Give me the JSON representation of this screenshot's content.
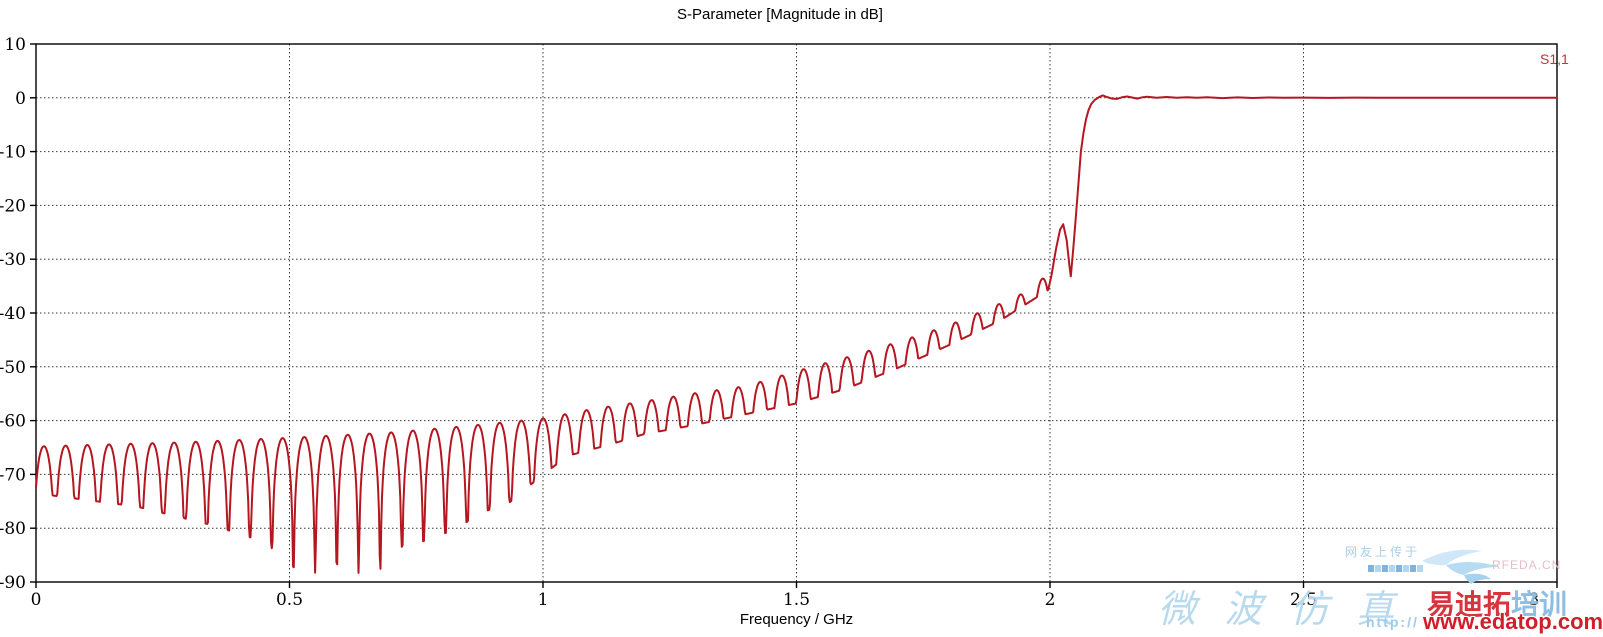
{
  "title": "S-Parameter [Magnitude in dB]",
  "legend": {
    "label": "S1,1",
    "color": "#c5333e"
  },
  "axis": {
    "x_title": "Frequency / GHz"
  },
  "chart_data": {
    "type": "line",
    "title": "S-Parameter [Magnitude in dB]",
    "xlabel": "Frequency / GHz",
    "ylabel": "",
    "xlim": [
      0,
      3
    ],
    "ylim": [
      -90,
      10
    ],
    "xticks": [
      0,
      0.5,
      1,
      1.5,
      2,
      2.5,
      3
    ],
    "xtick_labels": [
      "0",
      "0.5",
      "1",
      "1.5",
      "2",
      "2.5",
      "3"
    ],
    "xtick_label_dx": [
      0,
      0,
      0,
      0,
      0,
      0,
      -23
    ],
    "yticks": [
      10,
      0,
      -10,
      -20,
      -30,
      -40,
      -50,
      -60,
      -70,
      -80,
      -90
    ],
    "grid": "dotted",
    "grid_color": "#3a3a3a",
    "legend_position": "top-right-outside",
    "series": [
      {
        "name": "S1,1",
        "color": "#b51721",
        "model": {
          "description": "Reflection coefficient of a low-pass filter: rippled return loss (-60 to -90 dB notches) over the passband, rising to a sharp transition near 2.05 GHz, then total reflection at 0 dB up to 3 GHz",
          "ripple_period_ghz": 0.0428,
          "notch_phase_ghz": 0.037,
          "ripple_end_ghz": 1.998,
          "sample_step_ghz": 0.0015,
          "envelope_top": [
            [
              0,
              -64.8
            ],
            [
              0.3,
              -64.0
            ],
            [
              0.5,
              -63.2
            ],
            [
              0.7,
              -62.2
            ],
            [
              0.85,
              -61.0
            ],
            [
              1.0,
              -59.6
            ],
            [
              1.1,
              -57.8
            ],
            [
              1.2,
              -56.4
            ],
            [
              1.3,
              -54.9
            ],
            [
              1.4,
              -53.6
            ],
            [
              1.5,
              -50.8
            ],
            [
              1.6,
              -48.2
            ],
            [
              1.7,
              -45.4
            ],
            [
              1.8,
              -42.3
            ],
            [
              1.9,
              -38.3
            ],
            [
              1.95,
              -36.2
            ],
            [
              2.0,
              -32.5
            ]
          ],
          "envelope_bottom": [
            [
              0,
              -73.5
            ],
            [
              0.2,
              -76.0
            ],
            [
              0.35,
              -79.5
            ],
            [
              0.45,
              -82.5
            ],
            [
              0.53,
              -89.0
            ],
            [
              0.6,
              -86.5
            ],
            [
              0.66,
              -89.5
            ],
            [
              0.72,
              -83.5
            ],
            [
              0.78,
              -82.0
            ],
            [
              0.83,
              -80.0
            ],
            [
              0.88,
              -77.0
            ],
            [
              0.93,
              -75.5
            ],
            [
              1.0,
              -70.0
            ],
            [
              1.05,
              -66.5
            ],
            [
              1.13,
              -64.5
            ],
            [
              1.2,
              -62.5
            ],
            [
              1.3,
              -60.8
            ],
            [
              1.4,
              -58.8
            ],
            [
              1.5,
              -56.8
            ],
            [
              1.6,
              -54.0
            ],
            [
              1.7,
              -50.2
            ],
            [
              1.8,
              -46.0
            ],
            [
              1.9,
              -41.5
            ],
            [
              2.0,
              -35.5
            ]
          ],
          "transition_points": [
            [
              2.003,
              -33.0
            ],
            [
              2.012,
              -28.0
            ],
            [
              2.02,
              -24.5
            ],
            [
              2.026,
              -23.5
            ],
            [
              2.033,
              -26.5
            ],
            [
              2.038,
              -31.0
            ],
            [
              2.041,
              -33.2
            ],
            [
              2.046,
              -28.0
            ],
            [
              2.051,
              -22.0
            ],
            [
              2.056,
              -16.0
            ],
            [
              2.061,
              -10.0
            ],
            [
              2.066,
              -6.5
            ],
            [
              2.071,
              -4.0
            ],
            [
              2.076,
              -2.3
            ],
            [
              2.081,
              -1.2
            ],
            [
              2.088,
              -0.4
            ],
            [
              2.096,
              0.1
            ],
            [
              2.104,
              0.45
            ],
            [
              2.112,
              0.15
            ],
            [
              2.122,
              -0.15
            ],
            [
              2.132,
              -0.2
            ],
            [
              2.142,
              0.1
            ],
            [
              2.152,
              0.25
            ],
            [
              2.162,
              0.05
            ],
            [
              2.172,
              -0.15
            ],
            [
              2.182,
              0.1
            ],
            [
              2.192,
              0.2
            ],
            [
              2.21,
              0.0
            ],
            [
              2.23,
              0.15
            ],
            [
              2.25,
              0.0
            ],
            [
              2.27,
              0.12
            ],
            [
              2.29,
              0.0
            ],
            [
              2.31,
              0.1
            ],
            [
              2.34,
              -0.05
            ],
            [
              2.37,
              0.08
            ],
            [
              2.4,
              -0.03
            ],
            [
              2.43,
              0.06
            ],
            [
              2.46,
              0.0
            ],
            [
              2.5,
              0.04
            ],
            [
              2.55,
              -0.02
            ],
            [
              2.6,
              0.03
            ],
            [
              2.65,
              0.0
            ],
            [
              2.75,
              0.02
            ],
            [
              2.85,
              0.0
            ],
            [
              3.0,
              0.0
            ]
          ]
        }
      }
    ]
  },
  "watermarks": {
    "uploader_note": "网友上传于",
    "rfeda": "RFEDA.CN",
    "calligraphy": "微 波 仿 真",
    "http_text": "http://",
    "logo_red": "易迪拓",
    "logo_blue": "培训",
    "site": "www.edatop.com",
    "colors": {
      "light_blue": "#aed3ec",
      "pale_pink": "#e2bfc5",
      "logo_red": "#d4232e",
      "logo_blue": "#85b9e2",
      "site_red": "#cf1f2a"
    }
  }
}
